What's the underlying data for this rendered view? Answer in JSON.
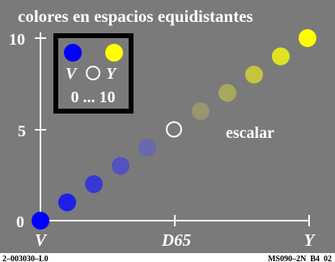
{
  "chart_data": {
    "type": "scatter",
    "title": "colores en espacios equidistantes",
    "annotation": "escalar",
    "background_color": "#7a7a7a",
    "x_ticks": [
      "V",
      "D65",
      "Y"
    ],
    "y_ticks": [
      "0",
      "5",
      "10"
    ],
    "ylim": [
      0,
      10
    ],
    "grid": false,
    "points": [
      {
        "step": 0,
        "color": "#0000ff",
        "hollow": false
      },
      {
        "step": 1,
        "color": "#1e1ee8",
        "hollow": false
      },
      {
        "step": 2,
        "color": "#3838d6",
        "hollow": false
      },
      {
        "step": 3,
        "color": "#5252c0",
        "hollow": false
      },
      {
        "step": 4,
        "color": "#6868ac",
        "hollow": false
      },
      {
        "step": 5,
        "color": "#ffffff",
        "hollow": true
      },
      {
        "step": 6,
        "color": "#969670",
        "hollow": false
      },
      {
        "step": 7,
        "color": "#a8a85c",
        "hollow": false
      },
      {
        "step": 8,
        "color": "#c4c440",
        "hollow": false
      },
      {
        "step": 9,
        "color": "#e2e224",
        "hollow": false
      },
      {
        "step": 10,
        "color": "#ffff00",
        "hollow": false
      }
    ],
    "legend": {
      "position": "top-left",
      "label_left": "V",
      "label_right": "Y",
      "range_text": "0 ... 10",
      "color_left": "#0000ff",
      "color_right": "#ffff00"
    }
  },
  "footer": {
    "left_code": "2–003030–L0",
    "right_code": "MS090–2N_B4_02"
  }
}
